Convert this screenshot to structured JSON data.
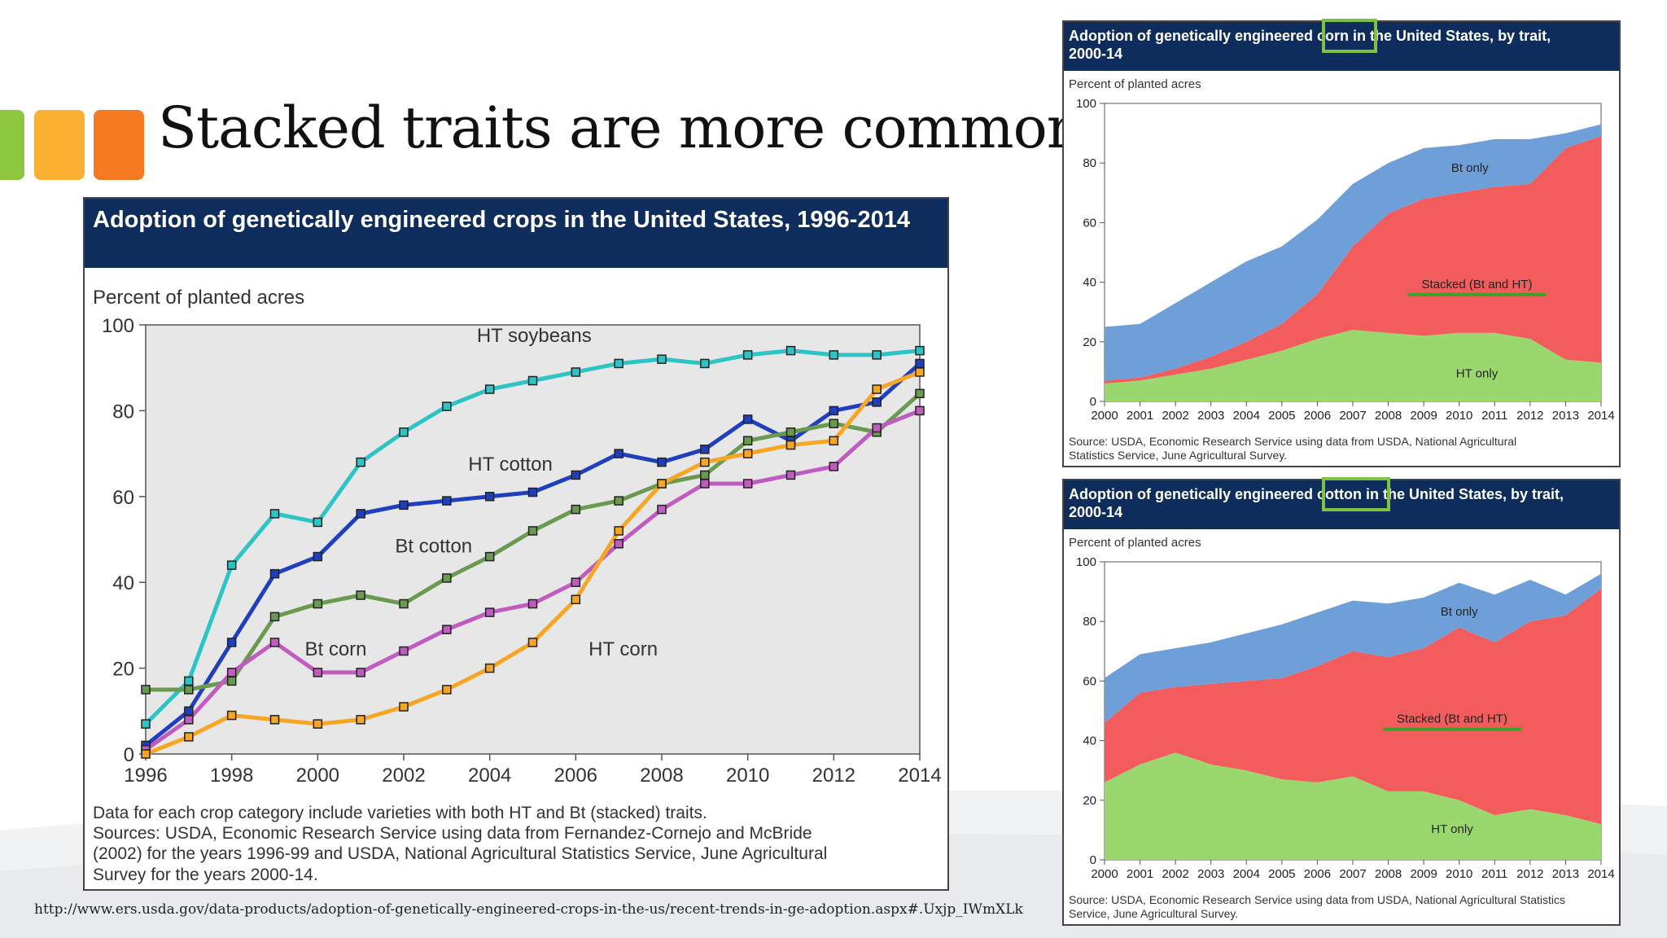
{
  "slide": {
    "title": "Stacked traits are more common",
    "url": "http://www.ers.usda.gov/data-products/adoption-of-genetically-engineered-crops-in-the-us/recent-trends-in-ge-adoption.aspx#.Uxjp_IWmXLk",
    "accent_colors": [
      "#8dc63f",
      "#fbb034",
      "#f47920"
    ]
  },
  "main_chart": {
    "header": "Adoption of genetically engineered crops in the United States, 1996-2014",
    "ylabel": "Percent of planted acres",
    "notes": [
      "Data for each crop category include varieties with both HT and Bt (stacked) traits.",
      "Sources: USDA, Economic Research Service using data from Fernandez-Cornejo and McBride",
      "(2002) for the years 1996-99 and USDA, National Agricultural Statistics Service, June Agricultural",
      "Survey for the years 2000-14."
    ]
  },
  "corn_chart": {
    "header_line1": "Adoption of genetically engineered corn in the United States, by trait,",
    "header_line2": "2000-14",
    "ylabel": "Percent of planted acres",
    "source_line1": "Source: USDA, Economic Research Service using data from USDA, National Agricultural",
    "source_line2": "Statistics Service, June Agricultural Survey."
  },
  "cotton_chart": {
    "header_line1": "Adoption of genetically engineered cotton in the United States, by trait,",
    "header_line2": "2000-14",
    "ylabel": "Percent of planted acres",
    "source_line1": "Source: USDA, Economic Research Service using data from USDA, National Agricultural Statistics",
    "source_line2": "Service, June Agricultural Survey."
  },
  "chart_data": [
    {
      "type": "line",
      "title": "Adoption of genetically engineered crops in the United States, 1996-2014",
      "ylabel": "Percent of planted acres",
      "xlabel": "",
      "ylim": [
        0,
        100
      ],
      "yticks": [
        0,
        20,
        40,
        60,
        80,
        100
      ],
      "xticks": [
        1996,
        1998,
        2000,
        2002,
        2004,
        2006,
        2008,
        2010,
        2012,
        2014
      ],
      "grid": false,
      "x": [
        1996,
        1997,
        1998,
        1999,
        2000,
        2001,
        2002,
        2003,
        2004,
        2005,
        2006,
        2007,
        2008,
        2009,
        2010,
        2011,
        2012,
        2013,
        2014
      ],
      "series": [
        {
          "name": "HT soybeans",
          "color": "#2cc4c4",
          "values": [
            7,
            17,
            44,
            56,
            54,
            68,
            75,
            81,
            85,
            87,
            89,
            91,
            92,
            91,
            93,
            94,
            93,
            93,
            94
          ]
        },
        {
          "name": "HT cotton",
          "color": "#1f3fbf",
          "values": [
            2,
            10,
            26,
            42,
            46,
            56,
            58,
            59,
            60,
            61,
            65,
            70,
            68,
            71,
            78,
            73,
            80,
            82,
            91
          ]
        },
        {
          "name": "Bt cotton",
          "color": "#6a9a50",
          "values": [
            15,
            15,
            17,
            32,
            35,
            37,
            35,
            41,
            46,
            52,
            57,
            59,
            63,
            65,
            73,
            75,
            77,
            75,
            84
          ]
        },
        {
          "name": "Bt corn",
          "color": "#c05cc0",
          "values": [
            1,
            8,
            19,
            26,
            19,
            19,
            24,
            29,
            33,
            35,
            40,
            49,
            57,
            63,
            63,
            65,
            67,
            76,
            80
          ]
        },
        {
          "name": "HT corn",
          "color": "#f5a623",
          "values": [
            0,
            4,
            9,
            8,
            7,
            8,
            11,
            15,
            20,
            26,
            36,
            52,
            63,
            68,
            70,
            72,
            73,
            85,
            89
          ]
        }
      ]
    },
    {
      "type": "area",
      "title": "Adoption of genetically engineered corn in the United States, by trait, 2000-14",
      "ylabel": "Percent of planted acres",
      "ylim": [
        0,
        100
      ],
      "yticks": [
        0,
        20,
        40,
        60,
        80,
        100
      ],
      "stacked": true,
      "x": [
        2000,
        2001,
        2002,
        2003,
        2004,
        2005,
        2006,
        2007,
        2008,
        2009,
        2010,
        2011,
        2012,
        2013,
        2014
      ],
      "series": [
        {
          "name": "HT only",
          "color": "#9bd76f",
          "values": [
            6,
            7,
            9,
            11,
            14,
            17,
            21,
            24,
            23,
            22,
            23,
            23,
            21,
            14,
            13
          ]
        },
        {
          "name": "Stacked (Bt and HT)",
          "color": "#f25c5c",
          "values": [
            1,
            1,
            2,
            4,
            6,
            9,
            15,
            28,
            40,
            46,
            47,
            49,
            52,
            71,
            76
          ]
        },
        {
          "name": "Bt only",
          "color": "#6f9fd8",
          "values": [
            18,
            18,
            22,
            25,
            27,
            26,
            25,
            21,
            17,
            17,
            16,
            16,
            15,
            5,
            4
          ]
        }
      ]
    },
    {
      "type": "area",
      "title": "Adoption of genetically engineered cotton in the United States, by trait, 2000-14",
      "ylabel": "Percent of planted acres",
      "ylim": [
        0,
        100
      ],
      "yticks": [
        0,
        20,
        40,
        60,
        80,
        100
      ],
      "stacked": true,
      "x": [
        2000,
        2001,
        2002,
        2003,
        2004,
        2005,
        2006,
        2007,
        2008,
        2009,
        2010,
        2011,
        2012,
        2013,
        2014
      ],
      "series": [
        {
          "name": "HT only",
          "color": "#9bd76f",
          "values": [
            26,
            32,
            36,
            32,
            30,
            27,
            26,
            28,
            23,
            23,
            20,
            15,
            17,
            15,
            12
          ]
        },
        {
          "name": "Stacked (Bt and HT)",
          "color": "#f25c5c",
          "values": [
            20,
            24,
            22,
            27,
            30,
            34,
            39,
            42,
            45,
            48,
            58,
            58,
            63,
            67,
            79
          ]
        },
        {
          "name": "Bt only",
          "color": "#6f9fd8",
          "values": [
            15,
            13,
            13,
            14,
            16,
            18,
            18,
            17,
            18,
            17,
            15,
            16,
            14,
            7,
            5
          ]
        }
      ]
    }
  ]
}
